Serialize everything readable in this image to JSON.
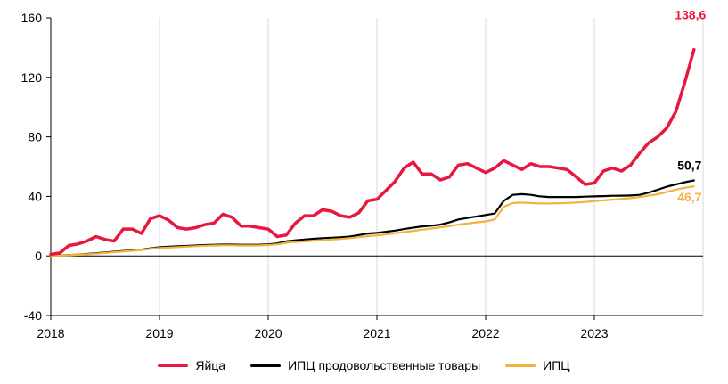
{
  "chart_data": {
    "type": "line",
    "title": "",
    "xlabel": "",
    "ylabel": "",
    "x_start": "2018-01",
    "x_end": "2023-12",
    "x_frequency": "monthly",
    "xlim": [
      "2018-01",
      "2024-01"
    ],
    "ylim": [
      -40,
      160
    ],
    "y_ticks": [
      -40,
      0,
      40,
      80,
      120,
      160
    ],
    "y_tick_labels": [
      "-40",
      "0",
      "40",
      "80",
      "120",
      "160"
    ],
    "x_ticks": [
      "2018-01",
      "2019-01",
      "2020-01",
      "2021-01",
      "2022-01",
      "2023-01"
    ],
    "x_tick_labels": [
      "2018",
      "2019",
      "2020",
      "2021",
      "2022",
      "2023"
    ],
    "grid": "vertical",
    "legend_position": "bottom",
    "series": [
      {
        "name": "Яйца",
        "color": "#e8173f",
        "end_label": "138,6",
        "values": [
          1,
          2,
          7,
          8,
          10,
          13,
          11,
          10,
          18,
          18,
          15,
          25,
          27,
          24,
          19,
          18,
          19,
          21,
          22,
          28,
          26,
          20,
          20,
          19,
          18,
          13,
          14,
          22,
          27,
          27,
          31,
          30,
          27,
          26,
          29,
          37,
          38,
          44,
          50,
          59,
          63,
          55,
          55,
          51,
          53,
          61,
          62,
          59,
          56,
          59,
          64,
          61,
          58,
          62,
          60,
          60,
          59,
          58,
          53,
          48,
          49,
          57,
          59,
          57,
          61,
          69,
          76,
          80,
          86,
          97,
          117,
          138.6
        ]
      },
      {
        "name": "ИПЦ продовольственные товары",
        "color": "#000000",
        "end_label": "50,7",
        "values": [
          0,
          0.3,
          0.6,
          0.9,
          1.3,
          1.8,
          2.3,
          2.8,
          3.3,
          3.7,
          4.2,
          5.1,
          5.8,
          6.2,
          6.5,
          6.7,
          7.0,
          7.3,
          7.5,
          7.6,
          7.6,
          7.5,
          7.5,
          7.5,
          7.8,
          8.4,
          9.8,
          10.5,
          11.0,
          11.5,
          11.9,
          12.2,
          12.5,
          13.0,
          14.0,
          15.0,
          15.5,
          16.2,
          17.0,
          18.0,
          19.0,
          19.8,
          20.3,
          21.0,
          22.5,
          24.5,
          25.5,
          26.5,
          27.5,
          28.5,
          37.0,
          41.0,
          41.5,
          41.0,
          40.0,
          39.6,
          39.6,
          39.6,
          39.6,
          39.8,
          40.0,
          40.2,
          40.4,
          40.5,
          40.6,
          41.0,
          42.5,
          44.5,
          46.5,
          48.0,
          49.5,
          50.7
        ]
      },
      {
        "name": "ИПЦ",
        "color": "#f2b33d",
        "end_label": "46,7",
        "values": [
          0,
          0.2,
          0.5,
          0.8,
          1.1,
          1.5,
          2.0,
          2.5,
          3.0,
          3.4,
          3.9,
          4.8,
          5.3,
          5.6,
          5.9,
          6.2,
          6.5,
          6.8,
          7.0,
          7.1,
          7.1,
          7.0,
          7.0,
          7.0,
          7.3,
          7.8,
          8.8,
          9.3,
          9.8,
          10.2,
          10.6,
          11.0,
          11.4,
          11.9,
          12.6,
          13.3,
          13.8,
          14.5,
          15.3,
          16.0,
          16.8,
          17.6,
          18.4,
          19.2,
          20.0,
          21.0,
          21.8,
          22.5,
          23.2,
          24.5,
          33.0,
          35.5,
          35.8,
          35.5,
          35.2,
          35.2,
          35.3,
          35.5,
          35.8,
          36.2,
          36.8,
          37.3,
          37.8,
          38.3,
          38.8,
          39.5,
          40.5,
          41.5,
          43.0,
          44.5,
          45.8,
          46.7
        ]
      }
    ]
  }
}
